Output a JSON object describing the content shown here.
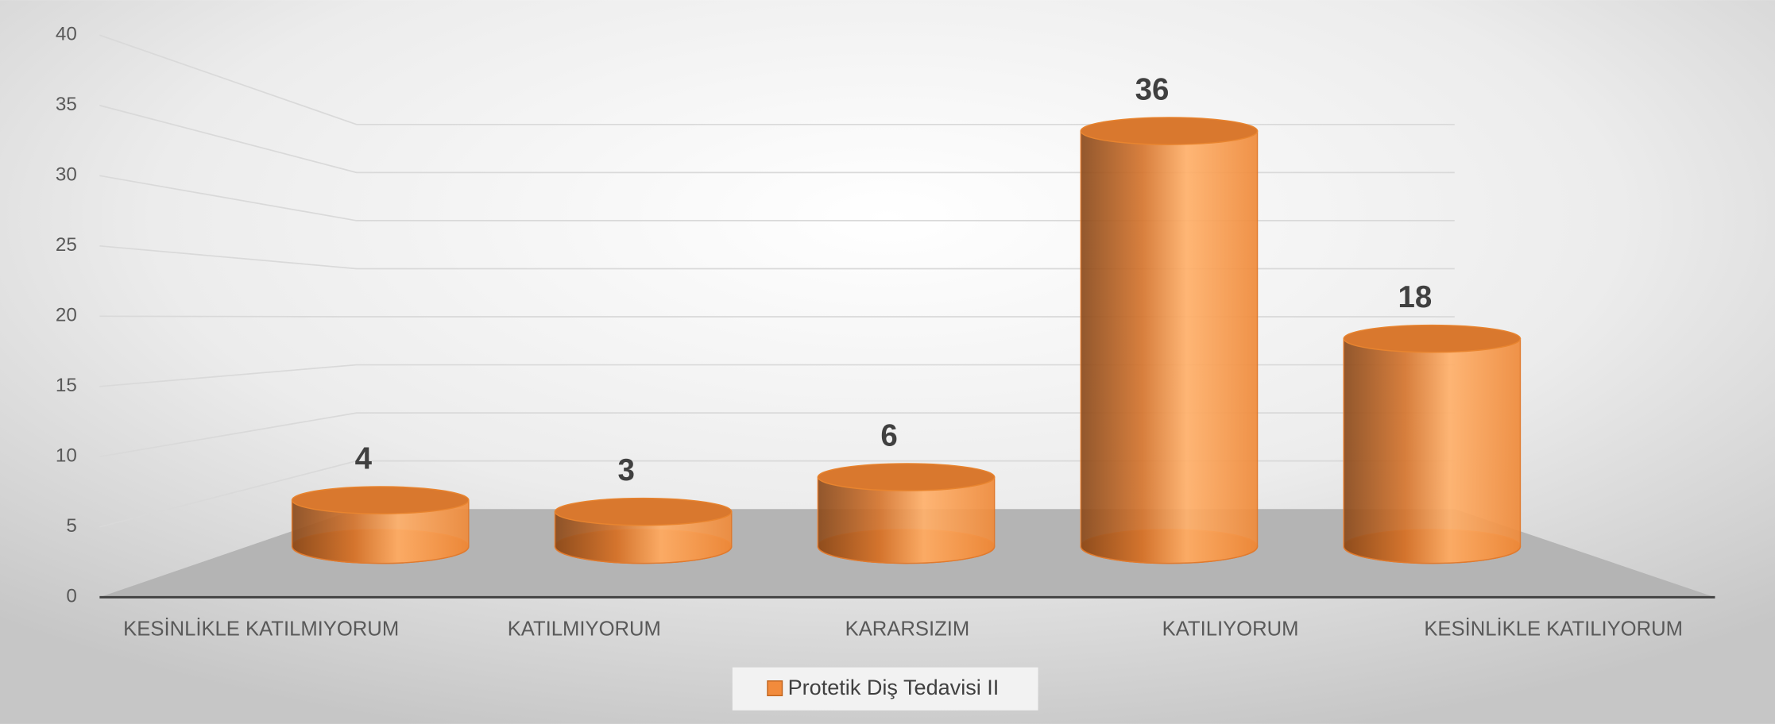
{
  "chart_data": {
    "type": "bar3d-cylinder",
    "categories": [
      "KESİNLİKLE KATILMIYORUM",
      "KATILMIYORUM",
      "KARARSIZIM",
      "KATILIYORUM",
      "KESİNLİKLE KATILIYORUM"
    ],
    "series": [
      {
        "name": "Protetik Diş Tedavisi II",
        "color": "#f28b3c",
        "values": [
          4,
          3,
          6,
          36,
          18
        ]
      }
    ],
    "ylim": [
      0,
      40
    ],
    "yticks": [
      0,
      5,
      10,
      15,
      20,
      25,
      30,
      35,
      40
    ],
    "grid": true,
    "legend": "bottom"
  }
}
